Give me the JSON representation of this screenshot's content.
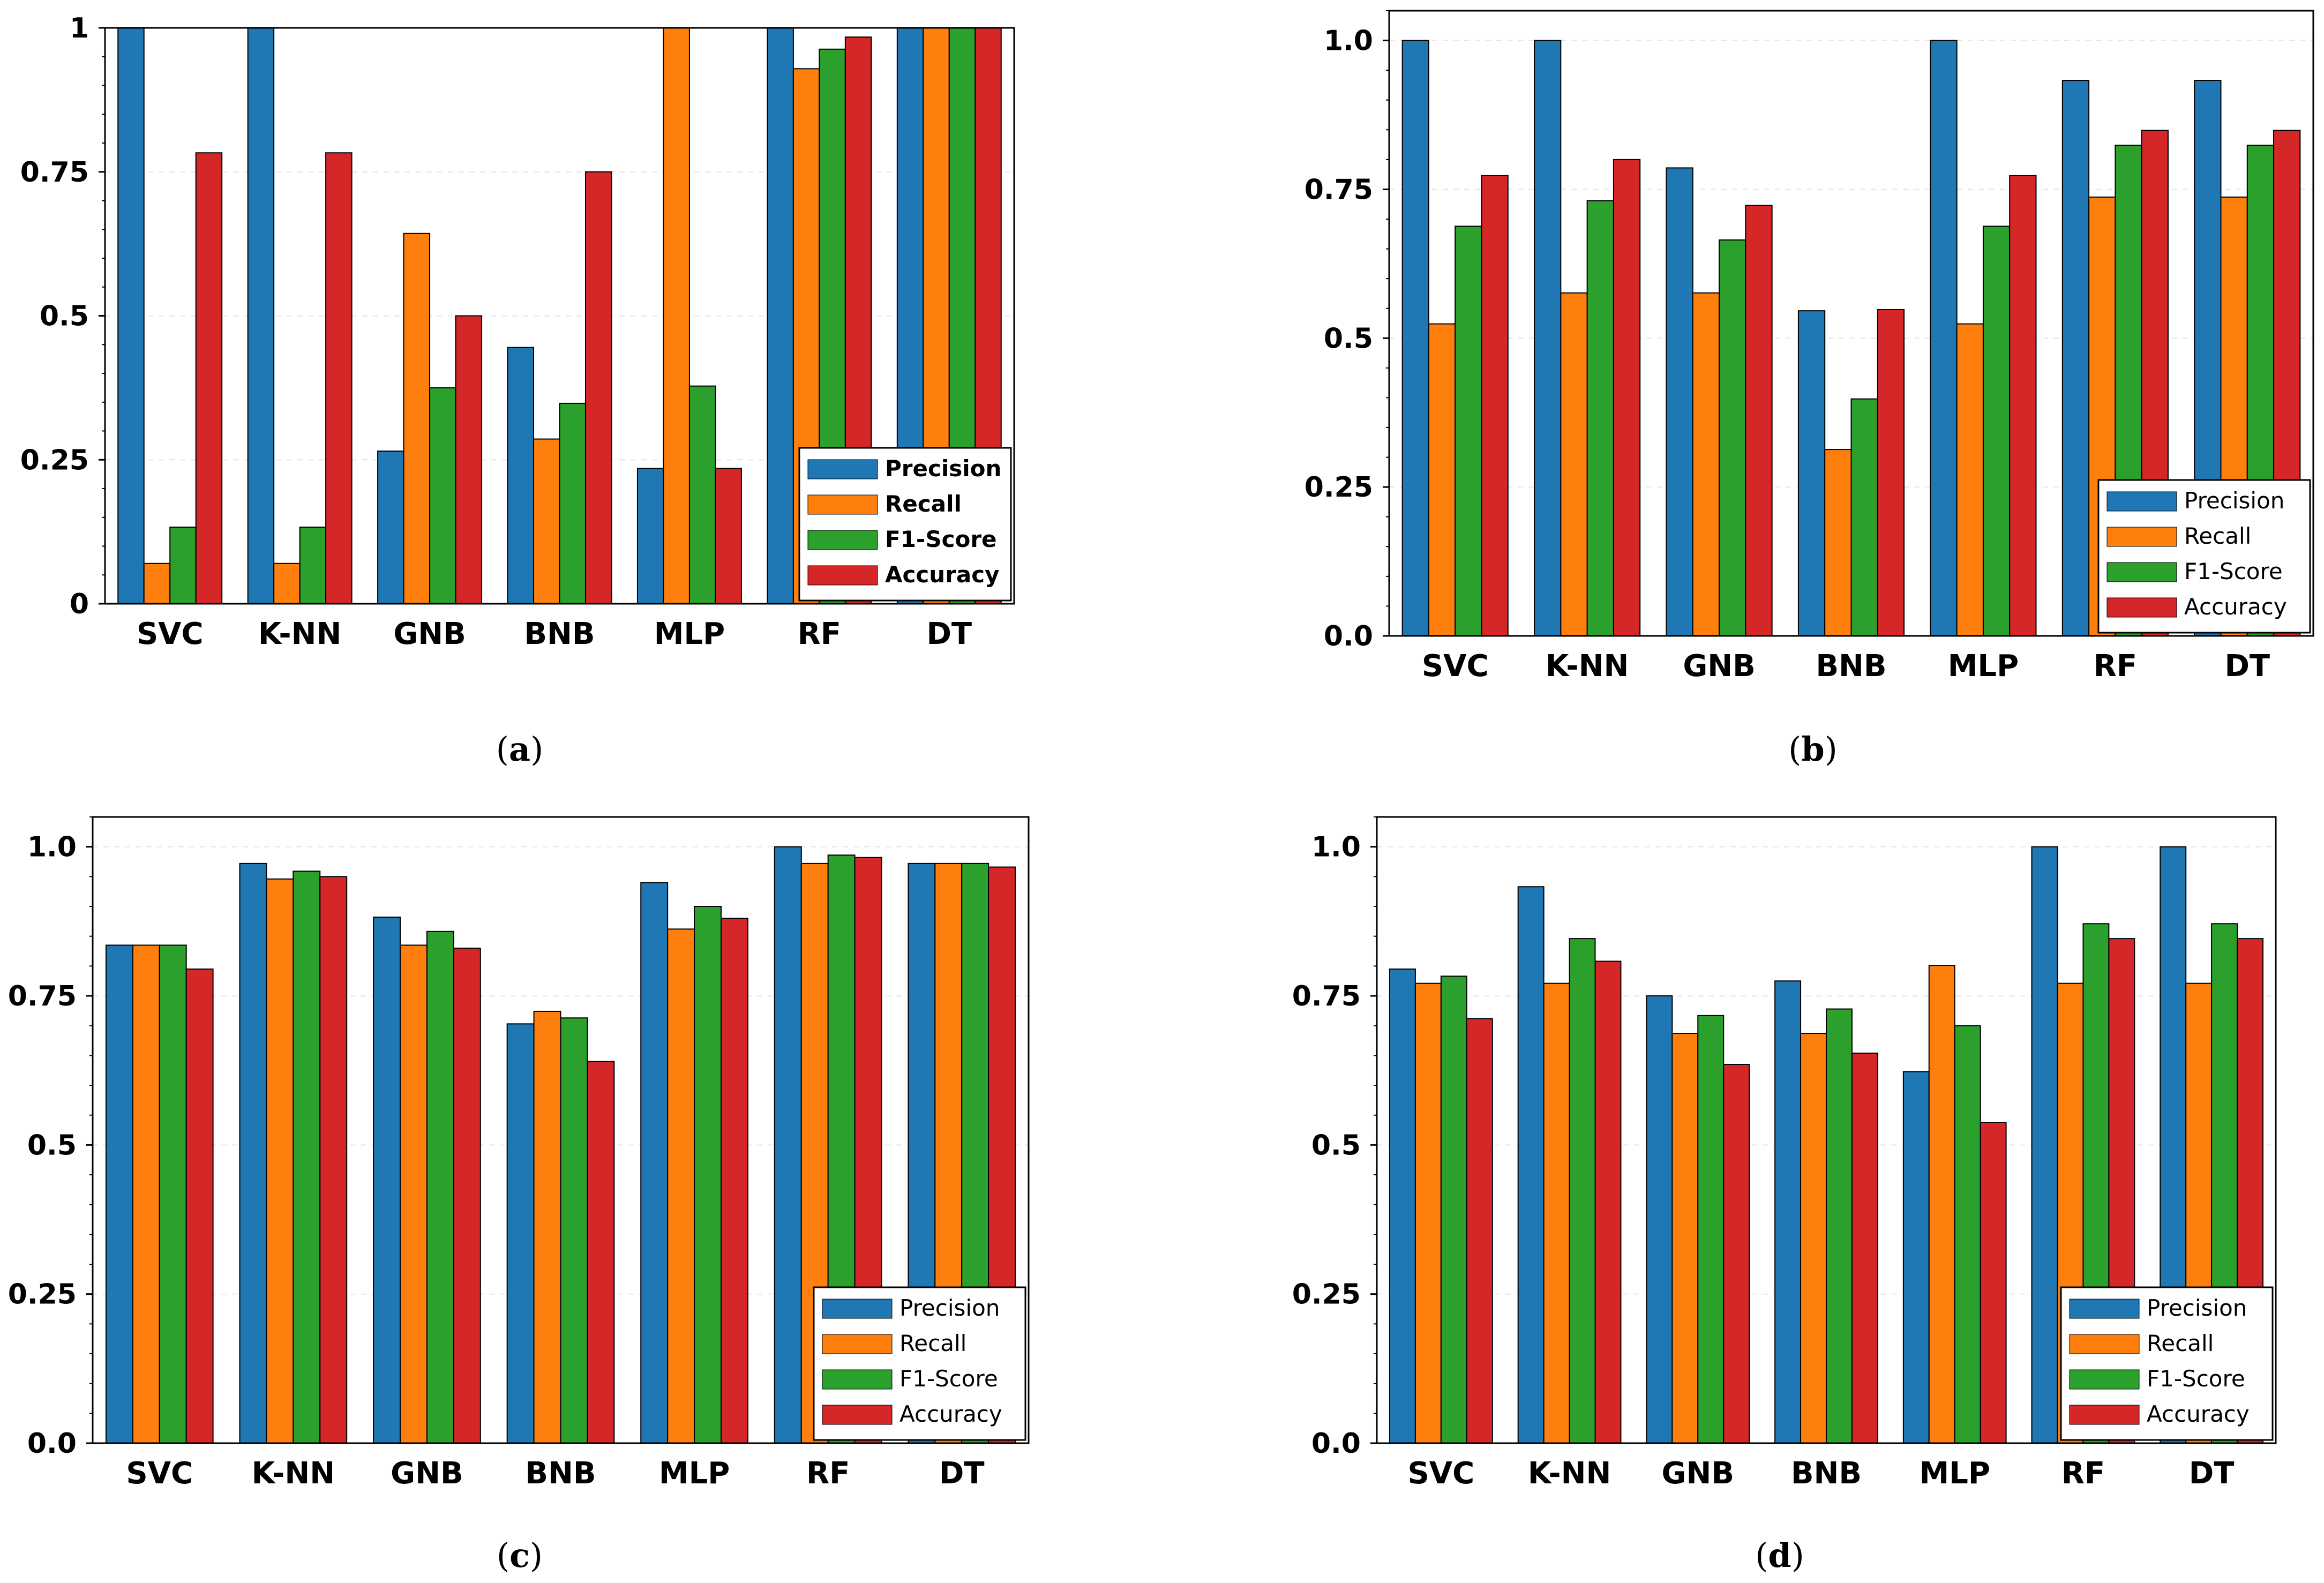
{
  "colors": {
    "Precision": "#1f77b4",
    "Recall": "#ff7f0e",
    "F1-Score": "#2ca02c",
    "Accuracy": "#d62728"
  },
  "chart_data": [
    {
      "id": "a",
      "type": "bar",
      "caption_letter": "a",
      "categories": [
        "SVC",
        "K-NN",
        "GNB",
        "BNB",
        "MLP",
        "RF",
        "DT"
      ],
      "series": [
        {
          "name": "Precision",
          "values": [
            1.0,
            1.0,
            0.265,
            0.445,
            0.235,
            1.0,
            1.0
          ]
        },
        {
          "name": "Recall",
          "values": [
            0.07,
            0.07,
            0.643,
            0.286,
            1.0,
            0.929,
            1.0
          ]
        },
        {
          "name": "F1-Score",
          "values": [
            0.133,
            0.133,
            0.375,
            0.348,
            0.378,
            0.963,
            1.0
          ]
        },
        {
          "name": "Accuracy",
          "values": [
            0.783,
            0.783,
            0.5,
            0.75,
            0.235,
            0.984,
            1.0
          ]
        }
      ],
      "ylim": [
        0,
        1
      ],
      "yticks": [
        "0",
        "0.25",
        "0.5",
        "0.75",
        "1"
      ],
      "legend_position": "bottom-right",
      "legend_bold": true
    },
    {
      "id": "b",
      "type": "bar",
      "caption_letter": "b",
      "categories": [
        "SVC",
        "K-NN",
        "GNB",
        "BNB",
        "MLP",
        "RF",
        "DT"
      ],
      "series": [
        {
          "name": "Precision",
          "values": [
            1.0,
            1.0,
            0.786,
            0.546,
            1.0,
            0.933,
            0.933
          ]
        },
        {
          "name": "Recall",
          "values": [
            0.524,
            0.576,
            0.576,
            0.313,
            0.524,
            0.737,
            0.737
          ]
        },
        {
          "name": "F1-Score",
          "values": [
            0.688,
            0.731,
            0.665,
            0.398,
            0.688,
            0.824,
            0.824
          ]
        },
        {
          "name": "Accuracy",
          "values": [
            0.773,
            0.8,
            0.723,
            0.548,
            0.773,
            0.849,
            0.849
          ]
        }
      ],
      "ylim": [
        0,
        1.05
      ],
      "yticks": [
        "0.0",
        "0.25",
        "0.5",
        "0.75",
        "1.0"
      ],
      "legend_position": "bottom-right",
      "legend_bold": false
    },
    {
      "id": "c",
      "type": "bar",
      "caption_letter": "c",
      "categories": [
        "SVC",
        "K-NN",
        "GNB",
        "BNB",
        "MLP",
        "RF",
        "DT"
      ],
      "series": [
        {
          "name": "Precision",
          "values": [
            0.835,
            0.972,
            0.882,
            0.703,
            0.94,
            1.0,
            0.972
          ]
        },
        {
          "name": "Recall",
          "values": [
            0.835,
            0.946,
            0.835,
            0.724,
            0.862,
            0.972,
            0.972
          ]
        },
        {
          "name": "F1-Score",
          "values": [
            0.835,
            0.959,
            0.858,
            0.713,
            0.9,
            0.986,
            0.972
          ]
        },
        {
          "name": "Accuracy",
          "values": [
            0.795,
            0.95,
            0.83,
            0.64,
            0.88,
            0.982,
            0.966
          ]
        }
      ],
      "ylim": [
        0,
        1.05
      ],
      "yticks": [
        "0.0",
        "0.25",
        "0.5",
        "0.75",
        "1.0"
      ],
      "legend_position": "bottom-right",
      "legend_bold": false
    },
    {
      "id": "d",
      "type": "bar",
      "caption_letter": "d",
      "categories": [
        "SVC",
        "K-NN",
        "GNB",
        "BNB",
        "MLP",
        "RF",
        "DT"
      ],
      "series": [
        {
          "name": "Precision",
          "values": [
            0.795,
            0.933,
            0.75,
            0.775,
            0.623,
            1.0,
            1.0
          ]
        },
        {
          "name": "Recall",
          "values": [
            0.771,
            0.771,
            0.687,
            0.687,
            0.801,
            0.771,
            0.771
          ]
        },
        {
          "name": "F1-Score",
          "values": [
            0.783,
            0.846,
            0.717,
            0.728,
            0.7,
            0.871,
            0.871
          ]
        },
        {
          "name": "Accuracy",
          "values": [
            0.712,
            0.808,
            0.635,
            0.654,
            0.538,
            0.846,
            0.846
          ]
        }
      ],
      "ylim": [
        0,
        1.05
      ],
      "yticks": [
        "0.0",
        "0.25",
        "0.5",
        "0.75",
        "1.0"
      ],
      "legend_position": "bottom-right",
      "legend_bold": false
    }
  ]
}
